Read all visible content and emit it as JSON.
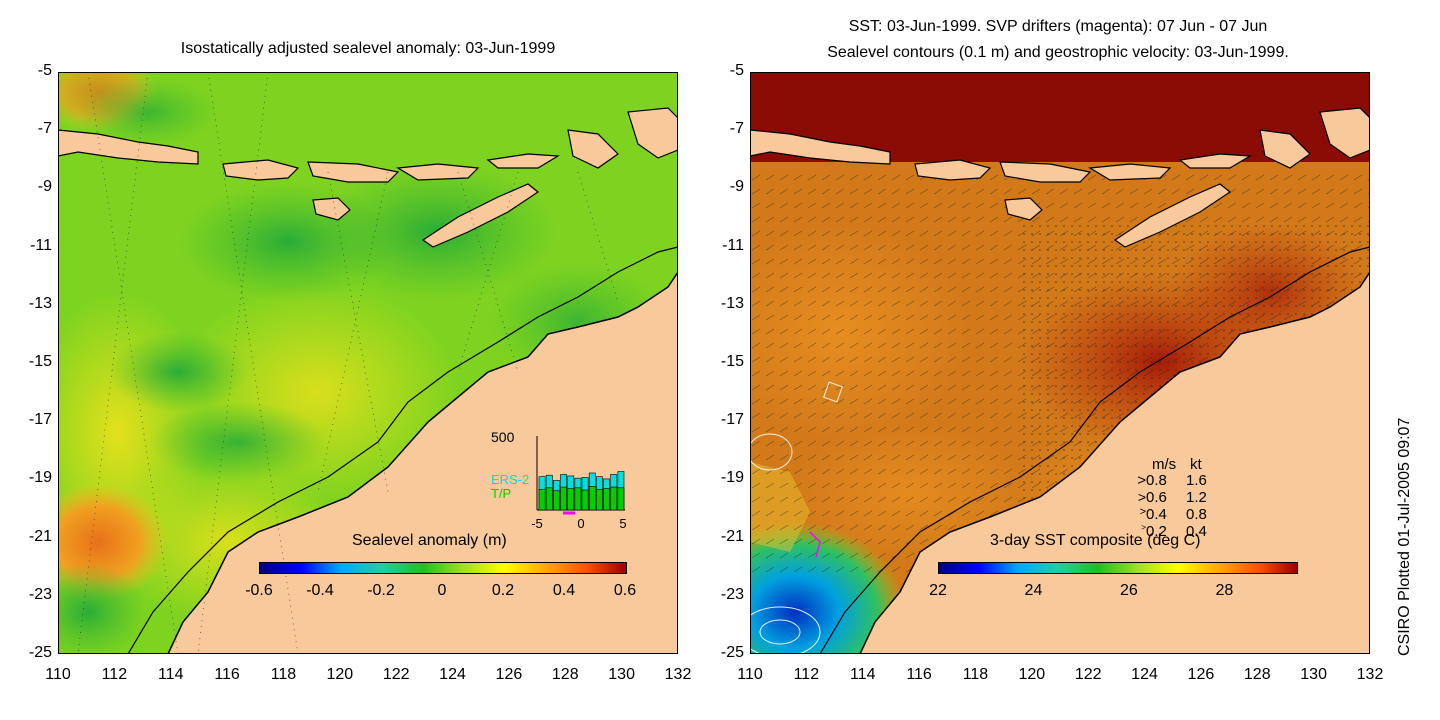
{
  "left_panel": {
    "title": "Isostatically adjusted sealevel anomaly: 03-Jun-1999",
    "y_ticks": [
      "-5",
      "-7",
      "-9",
      "-11",
      "-13",
      "-15",
      "-17",
      "-19",
      "-21",
      "-23",
      "-25"
    ],
    "x_ticks": [
      "110",
      "112",
      "114",
      "116",
      "118",
      "120",
      "122",
      "124",
      "126",
      "128",
      "130",
      "132"
    ],
    "colorbar": {
      "label": "Sealevel anomaly (m)",
      "ticks": [
        "-0.6",
        "-0.4",
        "-0.2",
        "0",
        "0.2",
        "0.4",
        "0.6"
      ],
      "colors": [
        "#00007f",
        "#0000ff",
        "#00aaff",
        "#20d0a0",
        "#20c020",
        "#a0e020",
        "#ffff00",
        "#ffaa00",
        "#ff5500",
        "#a00000"
      ]
    },
    "histogram": {
      "y_max_label": "500",
      "series_a": "ERS-2",
      "series_b": "T/P",
      "x_ticks": [
        "-5",
        "0",
        "5"
      ],
      "color_a": "#00e0e0",
      "color_b": "#00d000",
      "bars_a": [
        0.45,
        0.47,
        0.4,
        0.48,
        0.46,
        0.43,
        0.44,
        0.5,
        0.45,
        0.42,
        0.48,
        0.52
      ],
      "bars_b": [
        0.28,
        0.3,
        0.26,
        0.31,
        0.29,
        0.3,
        0.27,
        0.32,
        0.28,
        0.29,
        0.31,
        0.3
      ]
    }
  },
  "right_panel": {
    "title_line1": "SST: 03-Jun-1999. SVP drifters (magenta): 07 Jun - 07 Jun",
    "title_line2": "Sealevel contours (0.1 m) and geostrophic velocity: 03-Jun-1999.",
    "y_ticks": [
      "-5",
      "-7",
      "-9",
      "-11",
      "-13",
      "-15",
      "-17",
      "-19",
      "-21",
      "-23",
      "-25"
    ],
    "x_ticks": [
      "110",
      "112",
      "114",
      "116",
      "118",
      "120",
      "122",
      "124",
      "126",
      "128",
      "130",
      "132"
    ],
    "colorbar": {
      "label": "3-day SST composite (deg C)",
      "ticks": [
        "22",
        "24",
        "26",
        "28"
      ],
      "colors": [
        "#00007f",
        "#0000ff",
        "#00aaff",
        "#20d0a0",
        "#20c020",
        "#a0e020",
        "#ffff00",
        "#ffaa00",
        "#ff5500",
        "#a00000"
      ]
    },
    "velocity_legend": {
      "header_ms": "m/s",
      "header_kt": "kt",
      "rows": [
        {
          "ms": "0.8",
          "kt": "1.6"
        },
        {
          "ms": "0.6",
          "kt": "1.2"
        },
        {
          "ms": "0.4",
          "kt": "0.8"
        },
        {
          "ms": "0.2",
          "kt": "0.4"
        }
      ]
    }
  },
  "credit": "CSIRO Plotted 01-Jul-2005 09:07",
  "colors": {
    "land": "#f8c99a",
    "coastline": "#000000",
    "sla_background": "#7ed320",
    "sst_background": "#d27a1a"
  }
}
